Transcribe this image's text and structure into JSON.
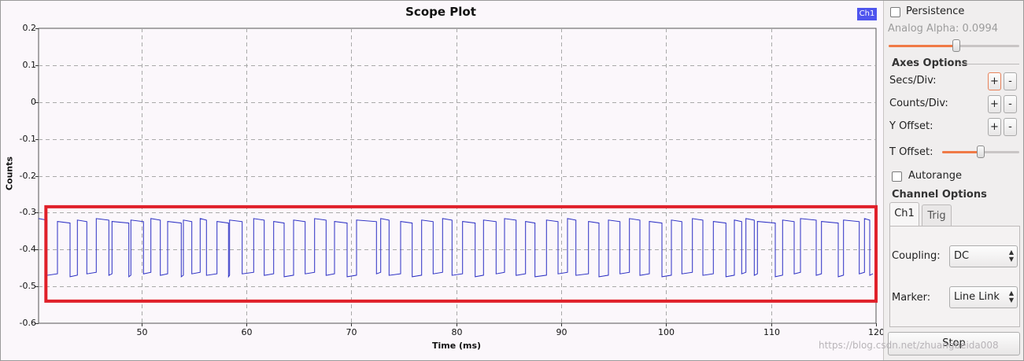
{
  "plot": {
    "title": "Scope Plot",
    "legend_label": "Ch1",
    "xlabel": "Time (ms)",
    "ylabel": "Counts",
    "trace_color": "#2b2fc4",
    "highlight_color": "#e0202a",
    "legend_color": "#4f55ee"
  },
  "chart_data": {
    "type": "line",
    "title": "Scope Plot",
    "xlabel": "Time (ms)",
    "ylabel": "Counts",
    "xlim": [
      40.2,
      120
    ],
    "ylim": [
      -0.6,
      0.2
    ],
    "x_ticks": [
      "50",
      "60",
      "70",
      "80",
      "90",
      "100",
      "110",
      "120"
    ],
    "y_ticks": [
      "0.2",
      "0.1",
      "0",
      "-0.1",
      "-0.2",
      "-0.3",
      "-0.4",
      "-0.5",
      "-0.6"
    ],
    "grid": true,
    "legend_position": "top-right",
    "series": [
      {
        "name": "Ch1",
        "high_level": -0.32,
        "low_level": -0.47,
        "segments": [
          [
            40.2,
            41.0,
            1
          ],
          [
            41.0,
            42.0,
            0
          ],
          [
            42.0,
            43.2,
            1
          ],
          [
            43.2,
            43.9,
            0
          ],
          [
            43.9,
            44.8,
            1
          ],
          [
            44.8,
            45.7,
            0
          ],
          [
            45.7,
            46.9,
            1
          ],
          [
            46.9,
            47.2,
            0
          ],
          [
            47.2,
            48.8,
            1
          ],
          [
            48.8,
            49.0,
            0
          ],
          [
            49.0,
            50.2,
            1
          ],
          [
            50.2,
            50.9,
            0
          ],
          [
            50.9,
            51.8,
            1
          ],
          [
            51.8,
            52.5,
            0
          ],
          [
            52.5,
            53.8,
            1
          ],
          [
            53.8,
            54.0,
            0
          ],
          [
            54.0,
            54.8,
            1
          ],
          [
            54.8,
            55.6,
            0
          ],
          [
            55.6,
            56.2,
            1
          ],
          [
            56.2,
            57.2,
            0
          ],
          [
            57.2,
            58.3,
            1
          ],
          [
            58.3,
            58.4,
            0
          ],
          [
            58.4,
            59.6,
            1
          ],
          [
            59.6,
            60.7,
            0
          ],
          [
            60.7,
            61.7,
            1
          ],
          [
            61.7,
            62.6,
            0
          ],
          [
            62.6,
            63.6,
            1
          ],
          [
            63.6,
            64.5,
            0
          ],
          [
            64.5,
            65.6,
            1
          ],
          [
            65.6,
            66.5,
            0
          ],
          [
            66.5,
            67.6,
            1
          ],
          [
            67.6,
            68.4,
            0
          ],
          [
            68.4,
            69.6,
            1
          ],
          [
            69.6,
            70.5,
            0
          ],
          [
            70.5,
            72.4,
            1
          ],
          [
            72.4,
            72.8,
            0
          ],
          [
            72.8,
            73.6,
            1
          ],
          [
            73.6,
            74.7,
            0
          ],
          [
            74.7,
            75.8,
            1
          ],
          [
            75.8,
            76.7,
            0
          ],
          [
            76.7,
            77.8,
            1
          ],
          [
            77.8,
            78.7,
            0
          ],
          [
            78.7,
            79.6,
            1
          ],
          [
            79.6,
            80.6,
            0
          ],
          [
            80.6,
            81.8,
            1
          ],
          [
            81.8,
            82.6,
            0
          ],
          [
            82.6,
            83.8,
            1
          ],
          [
            83.8,
            84.6,
            0
          ],
          [
            84.6,
            85.7,
            1
          ],
          [
            85.7,
            86.6,
            0
          ],
          [
            86.6,
            87.5,
            1
          ],
          [
            87.5,
            88.6,
            0
          ],
          [
            88.6,
            89.7,
            1
          ],
          [
            89.7,
            90.6,
            0
          ],
          [
            90.6,
            91.4,
            1
          ],
          [
            91.4,
            92.6,
            0
          ],
          [
            92.6,
            93.6,
            1
          ],
          [
            93.6,
            94.5,
            0
          ],
          [
            94.5,
            95.6,
            1
          ],
          [
            95.6,
            96.5,
            0
          ],
          [
            96.5,
            97.5,
            1
          ],
          [
            97.5,
            98.4,
            0
          ],
          [
            98.4,
            99.6,
            1
          ],
          [
            99.6,
            100.5,
            0
          ],
          [
            100.5,
            101.5,
            1
          ],
          [
            101.5,
            102.5,
            0
          ],
          [
            102.5,
            103.5,
            1
          ],
          [
            103.5,
            104.5,
            0
          ],
          [
            104.5,
            105.7,
            1
          ],
          [
            105.7,
            106.5,
            0
          ],
          [
            106.5,
            107.2,
            1
          ],
          [
            107.2,
            107.6,
            0
          ],
          [
            107.6,
            108.4,
            1
          ],
          [
            108.4,
            108.7,
            0
          ],
          [
            108.7,
            110.4,
            1
          ],
          [
            110.4,
            111.1,
            0
          ],
          [
            111.1,
            112.2,
            1
          ],
          [
            112.2,
            112.8,
            0
          ],
          [
            112.8,
            114.3,
            1
          ],
          [
            114.3,
            114.8,
            0
          ],
          [
            114.8,
            116.4,
            1
          ],
          [
            116.4,
            116.9,
            0
          ],
          [
            116.9,
            118.4,
            1
          ],
          [
            118.4,
            118.9,
            0
          ],
          [
            118.9,
            119.4,
            1
          ],
          [
            119.4,
            119.7,
            0
          ]
        ]
      }
    ],
    "annotation": {
      "type": "highlight-box",
      "x_range": [
        40.9,
        120
      ],
      "y_range": [
        -0.54,
        -0.284
      ]
    }
  },
  "panel": {
    "persistence_label": "Persistence",
    "analog_alpha_label": "Analog Alpha: 0.0994",
    "analog_alpha_level": 0.52,
    "axes_options_title": "Axes Options",
    "secs_div_label": "Secs/Div:",
    "counts_div_label": "Counts/Div:",
    "y_offset_label": "Y Offset:",
    "t_offset_label": "T Offset:",
    "t_offset_level": 0.5,
    "plus_label": "+",
    "minus_label": "-",
    "autorange_label": "Autorange",
    "channel_options_title": "Channel Options",
    "tab_ch1": "Ch1",
    "tab_trig": "Trig",
    "coupling_label": "Coupling:",
    "coupling_value": "DC",
    "marker_label": "Marker:",
    "marker_value": "Line Link",
    "stop_label": "Stop",
    "slider_accent": "#f07a46"
  },
  "watermark": "https://blog.csdn.net/zhuangbeida008"
}
